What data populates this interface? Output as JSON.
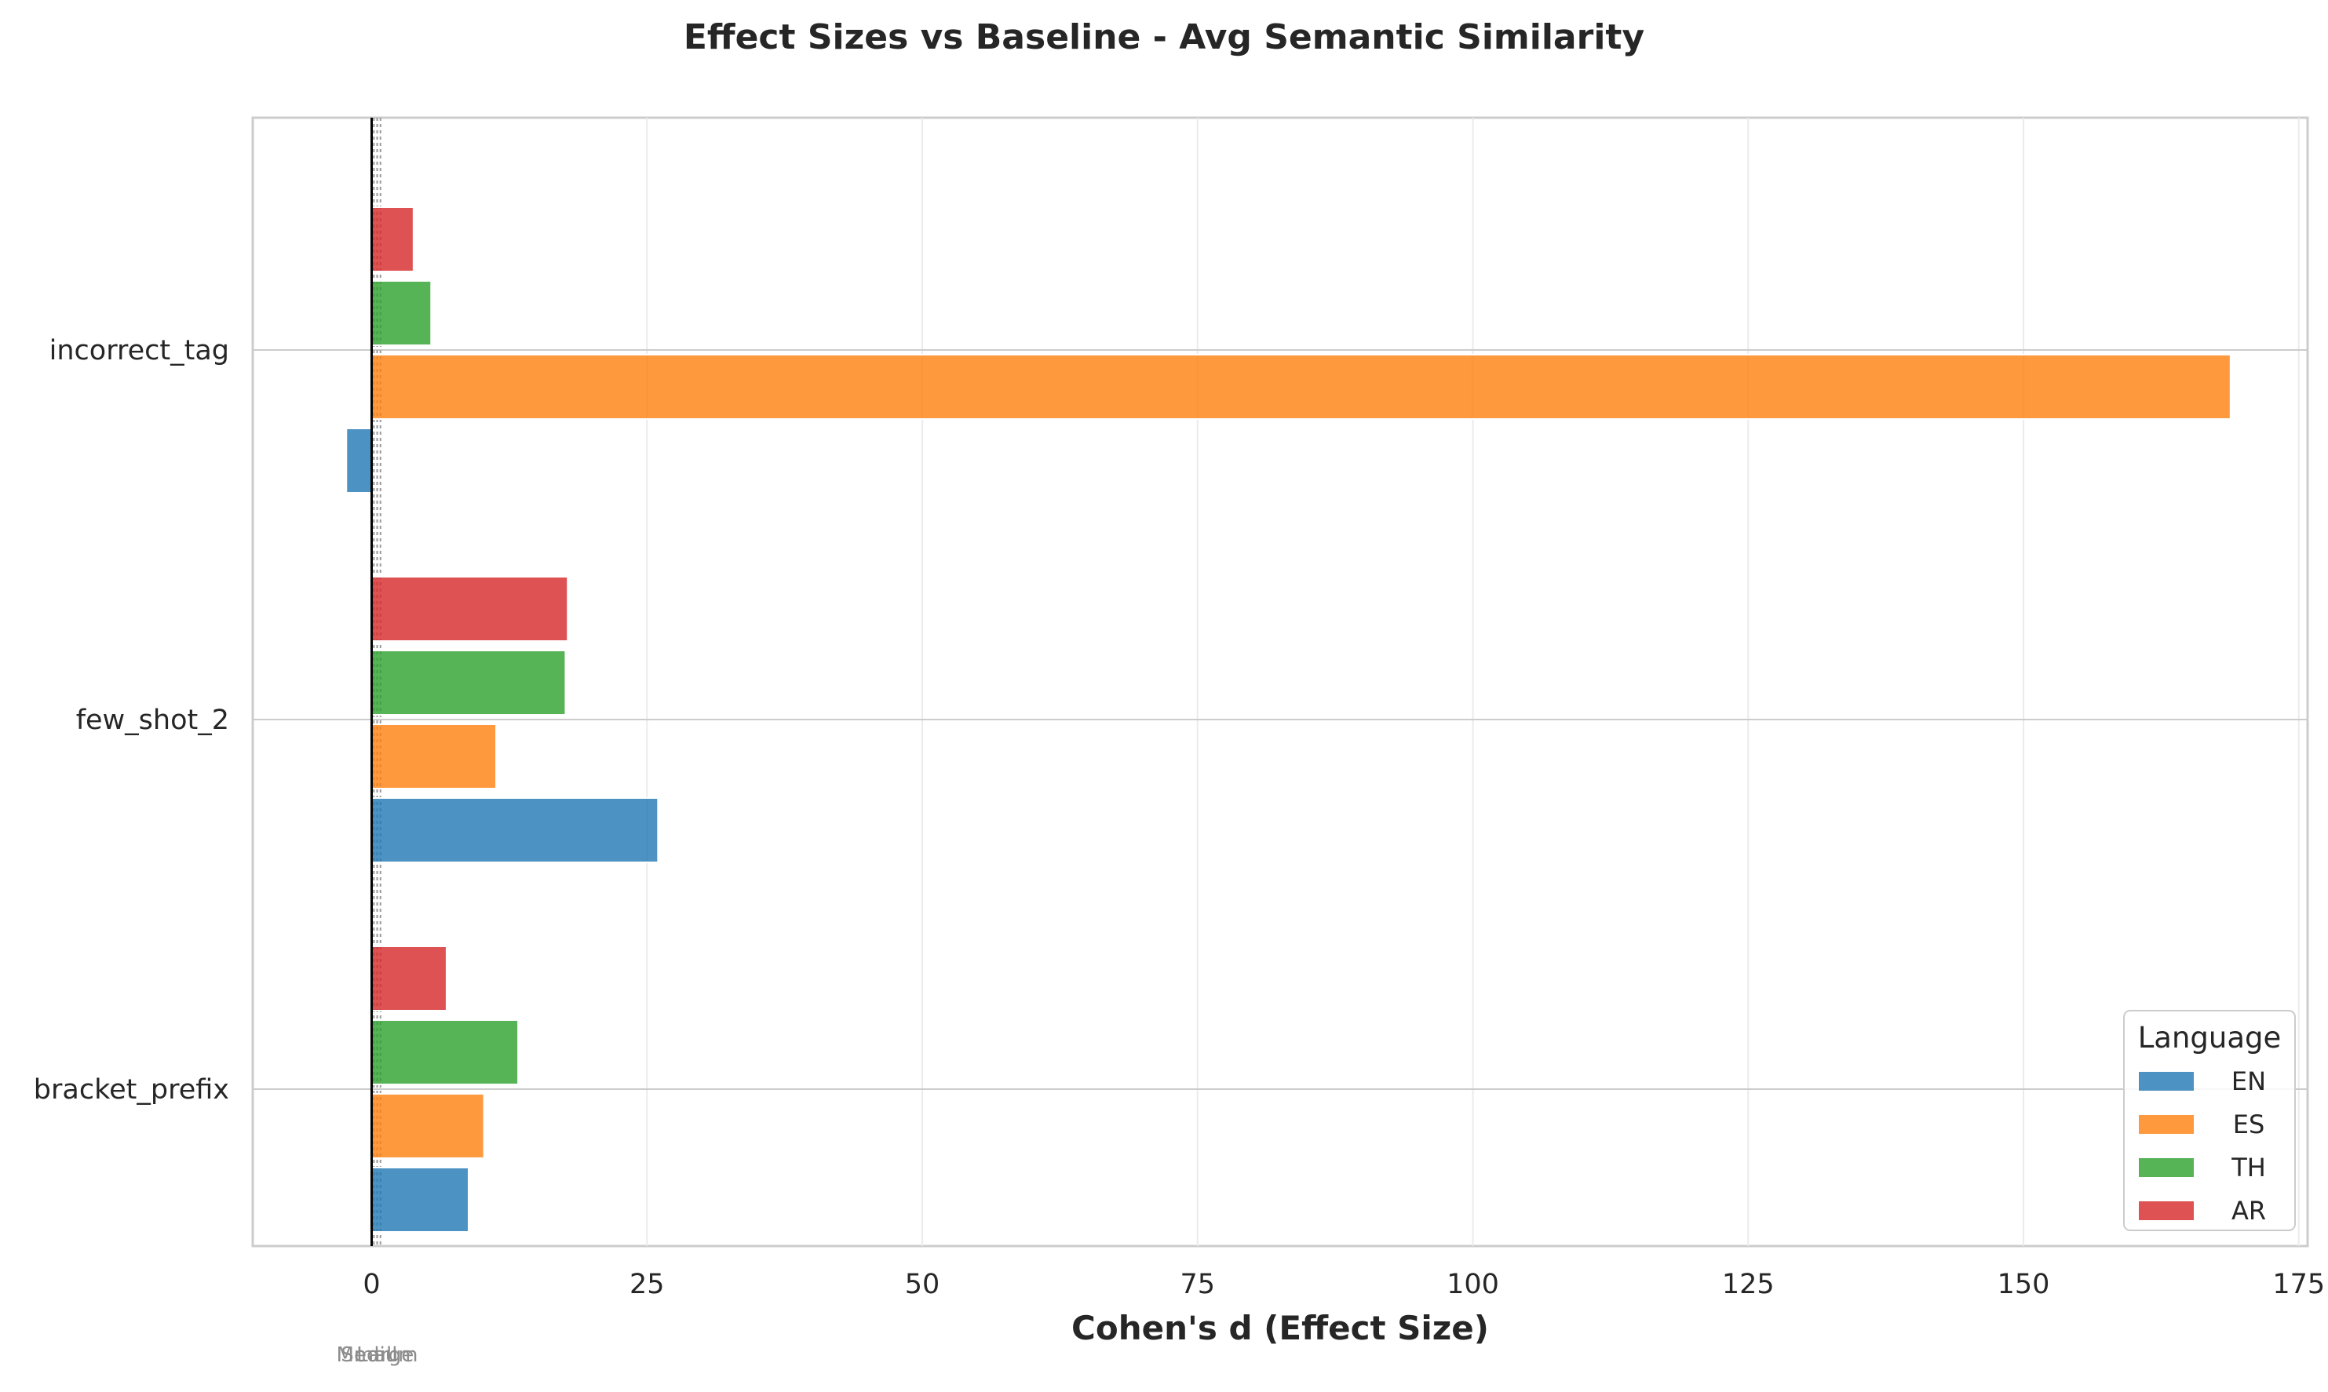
{
  "chart_data": {
    "type": "bar",
    "orientation": "horizontal",
    "title": "Effect Sizes vs Baseline - Avg Semantic Similarity",
    "xlabel": "Cohen's d (Effect Size)",
    "ylabel": "",
    "categories": [
      "bracket_prefix",
      "few_shot_2",
      "incorrect_tag"
    ],
    "series": [
      {
        "name": "EN",
        "color": "#1f77b4",
        "values": [
          8.8,
          26.0,
          -2.3
        ]
      },
      {
        "name": "ES",
        "color": "#ff7f0e",
        "values": [
          10.2,
          11.3,
          168.8
        ]
      },
      {
        "name": "TH",
        "color": "#2ca02c",
        "values": [
          13.3,
          17.6,
          5.4
        ]
      },
      {
        "name": "AR",
        "color": "#d62728",
        "values": [
          6.8,
          17.8,
          3.8
        ]
      }
    ],
    "xlim": [
      -10.8,
      175.8
    ],
    "xticks": [
      0,
      25,
      50,
      75,
      100,
      125,
      150,
      175
    ],
    "reference_lines": [
      {
        "value": 0.2,
        "label": "Small"
      },
      {
        "value": 0.5,
        "label": "Medium"
      },
      {
        "value": 0.8,
        "label": "Large"
      }
    ],
    "legend": {
      "title": "Language",
      "position": "lower-right"
    },
    "grid": true
  }
}
